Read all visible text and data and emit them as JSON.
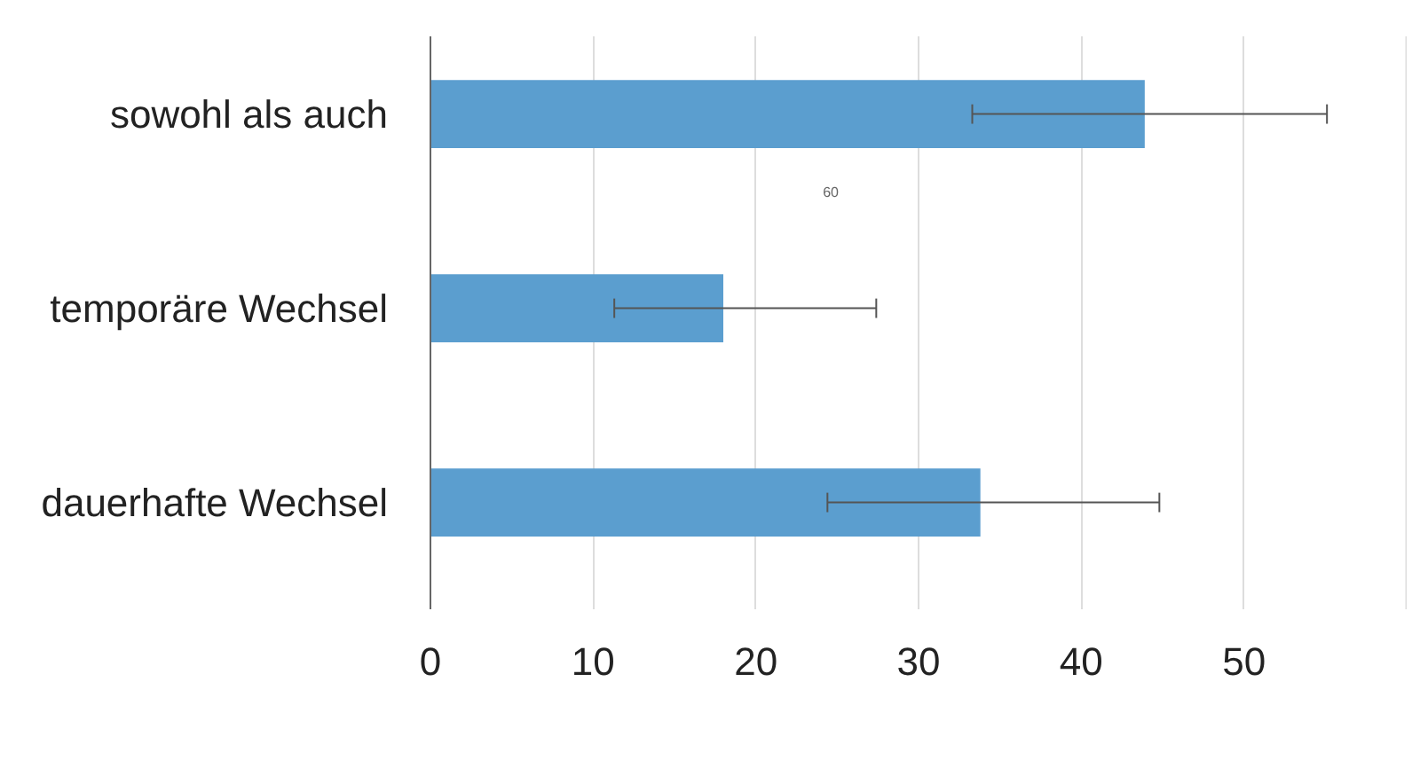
{
  "chart_data": {
    "type": "bar",
    "orientation": "horizontal",
    "categories": [
      "sowohl als auch",
      "temporäre Wechsel",
      "dauerhafte Wechsel"
    ],
    "values": [
      43.9,
      18.0,
      33.8
    ],
    "color": "#5b9ecf",
    "errors": [
      [
        33.3,
        55.1
      ],
      [
        11.3,
        27.4
      ],
      [
        24.4,
        44.8
      ]
    ],
    "xlim": [
      0,
      60
    ],
    "xticks": [
      0,
      10,
      20,
      30,
      40,
      50,
      {
        "value": 60,
        "label": null
      }
    ],
    "grid": "x",
    "annotations": [
      "60"
    ]
  }
}
